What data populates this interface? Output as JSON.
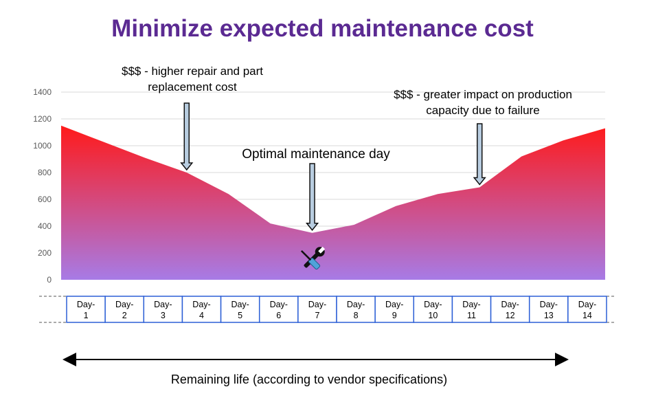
{
  "title": "Minimize expected maintenance cost",
  "annotations": {
    "left": "$$$ - higher repair and part replacement cost",
    "middle": "Optimal maintenance day",
    "right": "$$$ - greater impact on production capacity due to failure"
  },
  "tool_icon": "wrench-screwdriver-icon",
  "footer_label": "Remaining life (according to vendor specifications)",
  "colors": {
    "title": "#5b2a92",
    "area_top": "#ff1a1a",
    "area_bottom": "#a77be6",
    "day_box_border": "#2c5fd6",
    "arrow_fill": "#b8cde0"
  },
  "chart_data": {
    "type": "area",
    "categories": [
      "Day-1",
      "Day-2",
      "Day-3",
      "Day-4",
      "Day-5",
      "Day-6",
      "Day-7",
      "Day-8",
      "Day-9",
      "Day-10",
      "Day-11",
      "Day-12",
      "Day-13",
      "Day-14"
    ],
    "series": [
      {
        "values": [
          1150,
          1030,
          910,
          800,
          640,
          420,
          350,
          410,
          550,
          640,
          690,
          920,
          1040,
          1130
        ]
      }
    ],
    "yticks": [
      0,
      200,
      400,
      600,
      800,
      1000,
      1200,
      1400
    ],
    "ylim": [
      0,
      1400
    ],
    "grid": true,
    "arrow_days": [
      4,
      7,
      11
    ]
  }
}
